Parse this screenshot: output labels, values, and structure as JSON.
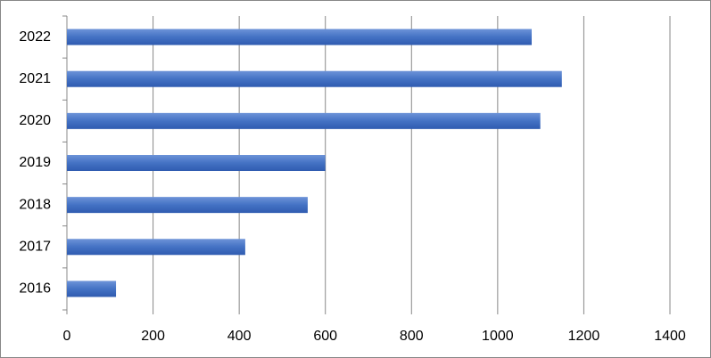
{
  "chart_data": {
    "type": "bar",
    "orientation": "horizontal",
    "categories": [
      "2016",
      "2017",
      "2018",
      "2019",
      "2020",
      "2021",
      "2022"
    ],
    "values": [
      114,
      414,
      559,
      600,
      1099,
      1149,
      1079
    ],
    "color": "#4472c4",
    "xlim": [
      0,
      1400
    ],
    "xticks": [
      0,
      200,
      400,
      600,
      800,
      1000,
      1200,
      1400
    ],
    "grid": true
  }
}
